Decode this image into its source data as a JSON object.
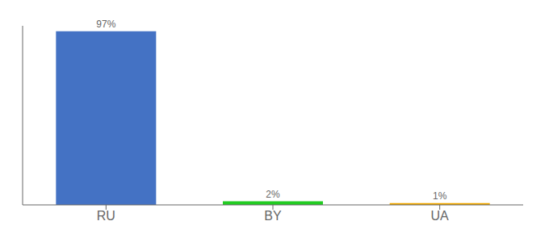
{
  "chart_data": {
    "type": "bar",
    "categories": [
      "RU",
      "BY",
      "UA"
    ],
    "values": [
      97,
      2,
      1
    ],
    "value_labels": [
      "97%",
      "2%",
      "1%"
    ],
    "colors": [
      "#4472c4",
      "#22cc22",
      "#f0a800"
    ],
    "ylim": [
      0,
      100
    ],
    "tick_labels": "x",
    "data_labels": true,
    "grid": false
  }
}
